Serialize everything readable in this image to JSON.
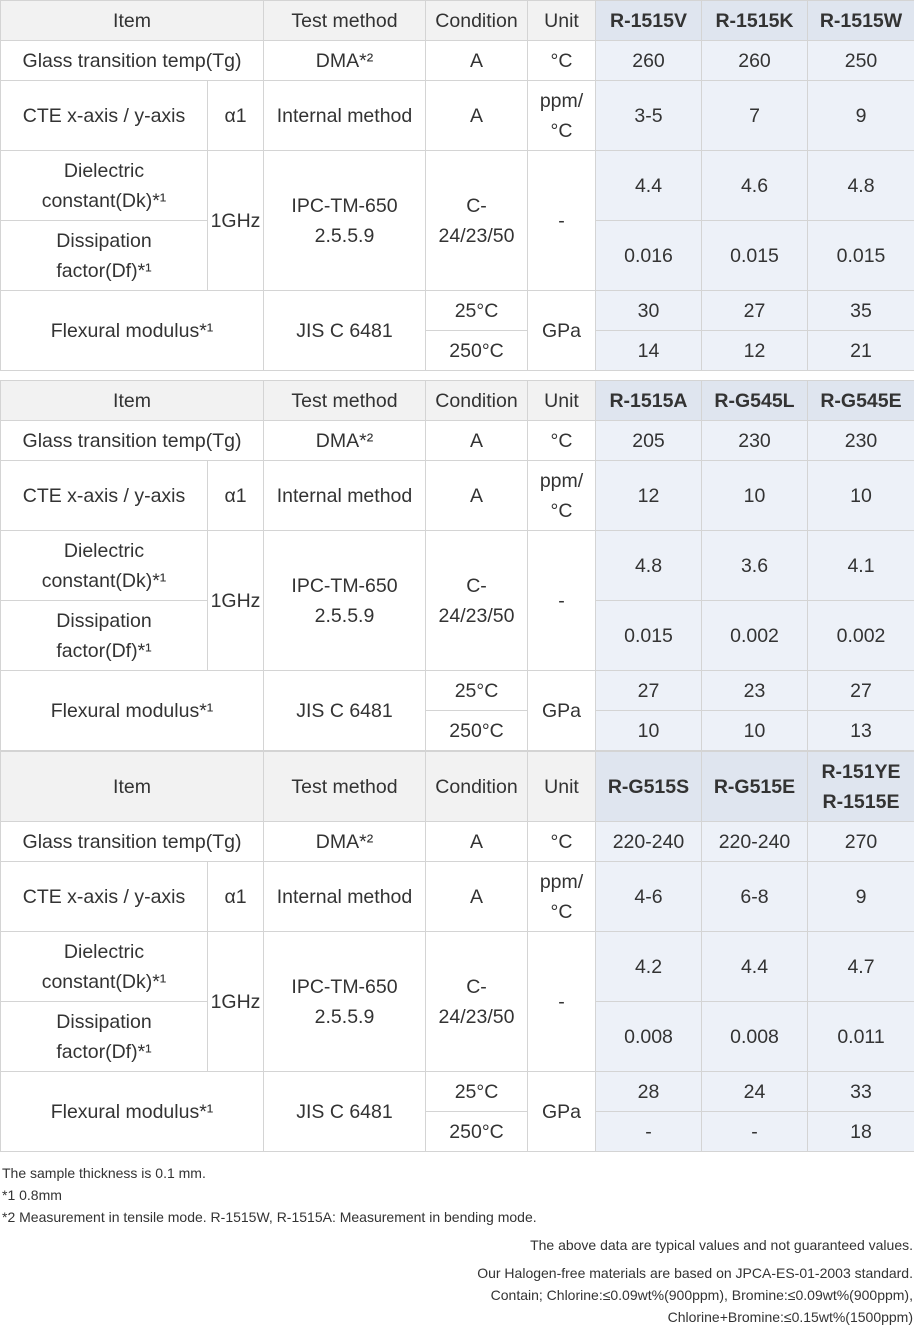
{
  "labels": {
    "item": "Item",
    "test_method": "Test method",
    "condition": "Condition",
    "unit": "Unit",
    "tg": "Glass transition temp(Tg)",
    "dma": "DMA*²",
    "cond_a": "A",
    "deg_c": "°C",
    "cte": "CTE x-axis / y-axis",
    "alpha1": "α1",
    "internal_method": "Internal method",
    "ppm_line1": "ppm/",
    "ppm_line2": "°C",
    "dk_line1": "Dielectric",
    "dk_line2": "constant(Dk)*¹",
    "ghz": "1GHz",
    "ipc_line1": "IPC-TM-650",
    "ipc_line2": "2.5.5.9",
    "cond_c_line1": "C-",
    "cond_c_line2": "24/23/50",
    "dash": "-",
    "df_line1": "Dissipation",
    "df_line2": "factor(Df)*¹",
    "flex": "Flexural modulus*¹",
    "jis": "JIS C 6481",
    "temp25": "25°C",
    "temp250": "250°C",
    "gpa": "GPa"
  },
  "tables": [
    {
      "products": [
        [
          "R-1515V"
        ],
        [
          "R-1515K"
        ],
        [
          "R-1515W"
        ]
      ],
      "tg": [
        "260",
        "260",
        "250"
      ],
      "cte": [
        "3-5",
        "7",
        "9"
      ],
      "dk": [
        "4.4",
        "4.6",
        "4.8"
      ],
      "df": [
        "0.016",
        "0.015",
        "0.015"
      ],
      "flex25": [
        "30",
        "27",
        "35"
      ],
      "flex250": [
        "14",
        "12",
        "21"
      ]
    },
    {
      "products": [
        [
          "R-1515A"
        ],
        [
          "R-G545L"
        ],
        [
          "R-G545E"
        ]
      ],
      "tg": [
        "205",
        "230",
        "230"
      ],
      "cte": [
        "12",
        "10",
        "10"
      ],
      "dk": [
        "4.8",
        "3.6",
        "4.1"
      ],
      "df": [
        "0.015",
        "0.002",
        "0.002"
      ],
      "flex25": [
        "27",
        "23",
        "27"
      ],
      "flex250": [
        "10",
        "10",
        "13"
      ]
    },
    {
      "products": [
        [
          "R-G515S"
        ],
        [
          "R-G515E"
        ],
        [
          "R-151YE",
          "R-1515E"
        ]
      ],
      "tg": [
        "220-240",
        "220-240",
        "270"
      ],
      "cte": [
        "4-6",
        "6-8",
        "9"
      ],
      "dk": [
        "4.2",
        "4.4",
        "4.7"
      ],
      "df": [
        "0.008",
        "0.008",
        "0.011"
      ],
      "flex25": [
        "28",
        "24",
        "33"
      ],
      "flex250": [
        "-",
        "-",
        "18"
      ]
    }
  ],
  "notes": {
    "thickness": "The sample thickness is 0.1 mm.",
    "note1": "*1 0.8mm",
    "note2": "*2 Measurement in tensile mode. R-1515W, R-1515A: Measurement in bending mode.",
    "typical": "The above data are typical values and not guaranteed values.",
    "halogen_line1": "Our Halogen-free materials are based on JPCA-ES-01-2003 standard.",
    "halogen_line2": "Contain; Chlorine:≤0.09wt%(900ppm), Bromine:≤0.09wt%(900ppm),",
    "halogen_line3": "Chlorine+Bromine:≤0.15wt%(1500ppm)"
  }
}
